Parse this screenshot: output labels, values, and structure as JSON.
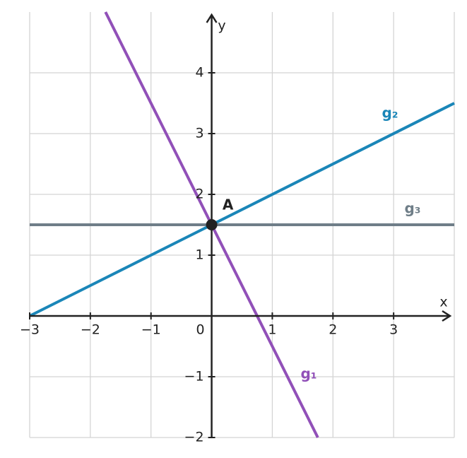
{
  "chart_data": {
    "type": "line",
    "xlabel": "x",
    "ylabel": "y",
    "xlim": [
      -3,
      4
    ],
    "ylim": [
      -2,
      5
    ],
    "xticks": [
      {
        "value": -3,
        "label": "−3"
      },
      {
        "value": -2,
        "label": "−2"
      },
      {
        "value": -1,
        "label": "−1"
      },
      0,
      1,
      2,
      3
    ],
    "yticks": [
      {
        "value": -2,
        "label": "−2"
      },
      {
        "value": -1,
        "label": "−1"
      },
      1,
      2,
      3,
      4
    ],
    "grid": true,
    "series": [
      {
        "name": "g₁",
        "color": "#9150b8",
        "x": [
          -1.75,
          1.75
        ],
        "values": [
          5,
          -2
        ]
      },
      {
        "name": "g₂",
        "color": "#1a86b8",
        "x": [
          -3,
          4
        ],
        "values": [
          0,
          3.5
        ]
      },
      {
        "name": "g₃",
        "color": "#6f7e88",
        "x": [
          -3,
          4
        ],
        "values": [
          1.5,
          1.5
        ]
      }
    ],
    "points": [
      {
        "name": "A",
        "x": 0,
        "y": 1.5,
        "color": "#222222"
      }
    ]
  }
}
